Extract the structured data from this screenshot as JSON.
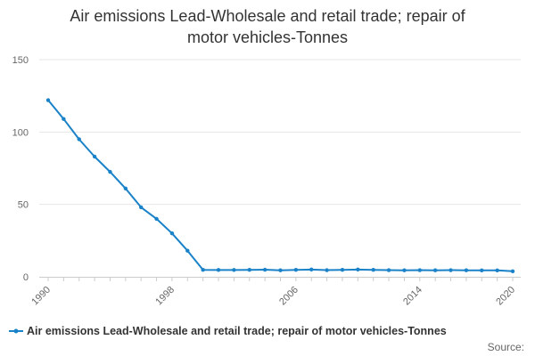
{
  "chart_data": {
    "type": "line",
    "title": "Air emissions Lead-Wholesale and retail trade; repair of motor vehicles-Tonnes",
    "title_lines": [
      "Air emissions Lead-Wholesale and retail trade; repair of",
      "motor vehicles-Tonnes"
    ],
    "x": [
      1990,
      1991,
      1992,
      1993,
      1994,
      1995,
      1996,
      1997,
      1998,
      1999,
      2000,
      2001,
      2002,
      2003,
      2004,
      2005,
      2006,
      2007,
      2008,
      2009,
      2010,
      2011,
      2012,
      2013,
      2014,
      2015,
      2016,
      2017,
      2018,
      2019,
      2020
    ],
    "series": [
      {
        "name": "Air emissions Lead-Wholesale and retail trade; repair of motor vehicles-Tonnes",
        "values": [
          122,
          109,
          95,
          83,
          72.5,
          61,
          48,
          40,
          30,
          18,
          4.8,
          4.7,
          4.7,
          4.8,
          4.9,
          4.5,
          4.8,
          5,
          4.6,
          4.8,
          5,
          4.8,
          4.6,
          4.5,
          4.6,
          4.5,
          4.6,
          4.5,
          4.4,
          4.4,
          3.8
        ],
        "color": "#1a82c8"
      }
    ],
    "xticks": [
      "1990",
      "1998",
      "2006",
      "2014",
      "2020"
    ],
    "yticks": [
      "0",
      "50",
      "100",
      "150"
    ],
    "xlim": [
      1990,
      2020
    ],
    "ylim": [
      0,
      150
    ],
    "xlabel": "",
    "ylabel": "",
    "grid": true,
    "legend_position": "bottom"
  },
  "footer": {
    "source_label": "Source:"
  }
}
